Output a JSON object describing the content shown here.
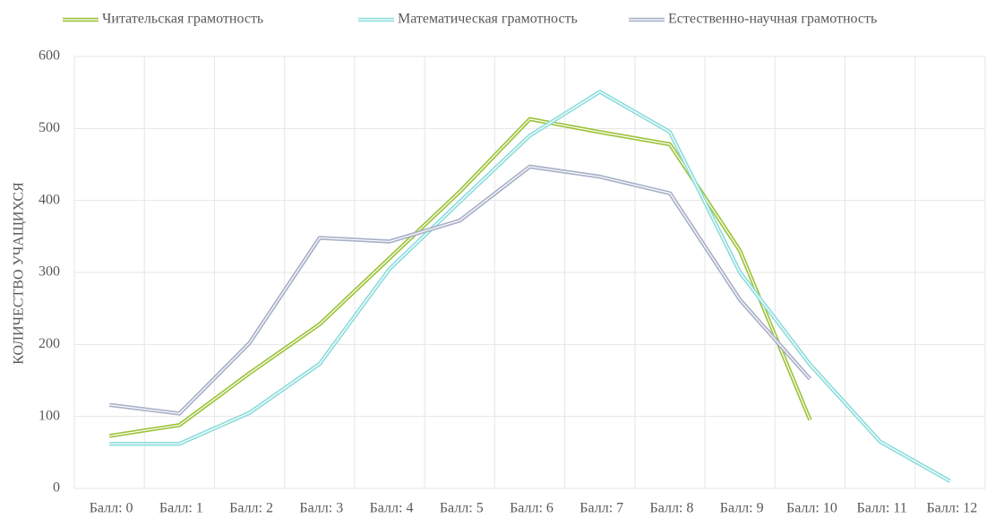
{
  "chart_data": {
    "type": "line",
    "categories": [
      "Балл: 0",
      "Балл: 1",
      "Балл: 2",
      "Балл: 3",
      "Балл: 4",
      "Балл: 5",
      "Балл: 6",
      "Балл: 7",
      "Балл: 8",
      "Балл: 9",
      "Балл: 10",
      "Балл: 11",
      "Балл: 12"
    ],
    "series": [
      {
        "name": "Читательская грамотность",
        "color": "#9dc33b",
        "values": [
          73,
          88,
          160,
          228,
          320,
          412,
          513,
          495,
          478,
          330,
          95,
          null,
          null
        ]
      },
      {
        "name": "Математическая грамотность",
        "color": "#8fdcdc",
        "values": [
          62,
          62,
          105,
          173,
          305,
          398,
          490,
          551,
          495,
          300,
          172,
          65,
          10
        ]
      },
      {
        "name": "Естественно-научная грамотность",
        "color": "#a8b0c8",
        "values": [
          116,
          104,
          202,
          348,
          343,
          372,
          447,
          433,
          410,
          262,
          152,
          null,
          null
        ]
      }
    ],
    "y_label": "КОЛИЧЕСТВО УЧАЩИХСЯ",
    "ylim": [
      0,
      600
    ],
    "yticks": [
      0,
      100,
      200,
      300,
      400,
      500,
      600
    ],
    "grid": true,
    "legend": "top"
  }
}
